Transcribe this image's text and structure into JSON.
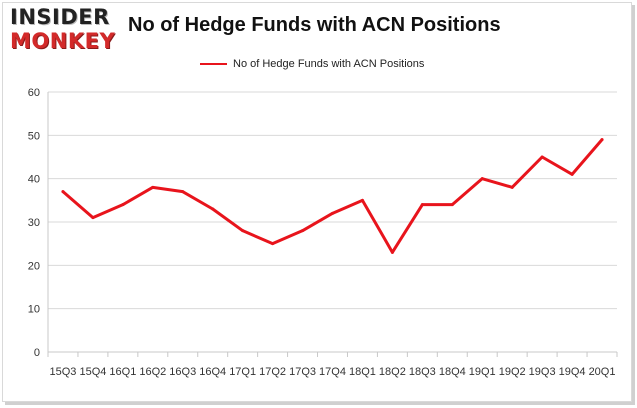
{
  "logo": {
    "line1": "INSIDER",
    "line2": "MONKEY"
  },
  "chart_data": {
    "type": "line",
    "title": "No of Hedge Funds with ACN Positions",
    "categories": [
      "15Q3",
      "15Q4",
      "16Q1",
      "16Q2",
      "16Q3",
      "16Q4",
      "17Q1",
      "17Q2",
      "17Q3",
      "17Q4",
      "18Q1",
      "18Q2",
      "18Q3",
      "18Q4",
      "19Q1",
      "19Q2",
      "19Q3",
      "19Q4",
      "20Q1"
    ],
    "series": [
      {
        "name": "No of Hedge Funds with ACN Positions",
        "values": [
          37,
          31,
          34,
          38,
          37,
          33,
          28,
          25,
          28,
          32,
          35,
          23,
          34,
          34,
          40,
          38,
          45,
          41,
          49
        ],
        "color": "#e8141c"
      }
    ],
    "xlabel": "",
    "ylabel": "",
    "ylim": [
      0,
      60
    ],
    "yticks": [
      0,
      10,
      20,
      30,
      40,
      50,
      60
    ],
    "grid": true,
    "legend": "top-center"
  }
}
